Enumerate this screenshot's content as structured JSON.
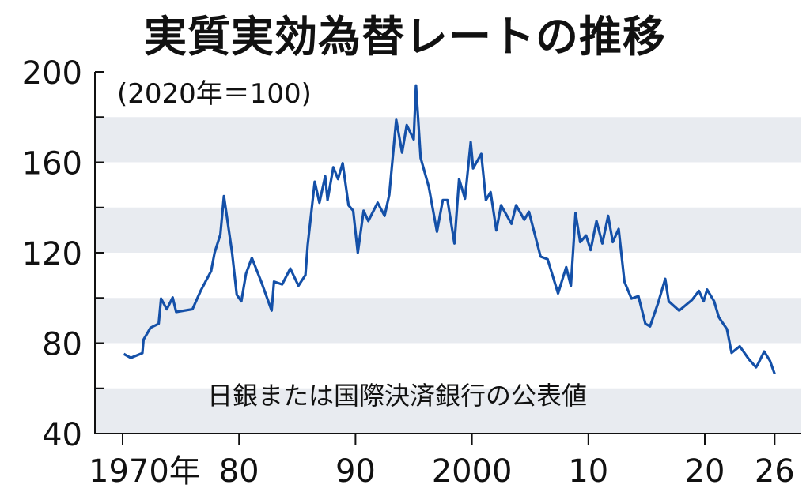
{
  "chart_data": {
    "type": "line",
    "title": "実質実効為替レートの推移",
    "unit_note": "(2020年＝100)",
    "source_note": "日銀または国際決済銀行の公表値",
    "ylim": [
      40,
      200
    ],
    "yticks": [
      "40",
      "80",
      "120",
      "160",
      "200"
    ],
    "ytick_values": [
      40,
      80,
      120,
      160,
      200
    ],
    "xlim": [
      1970,
      2026
    ],
    "xticks": [
      {
        "value": 1970,
        "label": "1970年"
      },
      {
        "value": 1980,
        "label": "80"
      },
      {
        "value": 1990,
        "label": "90"
      },
      {
        "value": 2000,
        "label": "2000"
      },
      {
        "value": 2010,
        "label": "10"
      },
      {
        "value": 2020,
        "label": "20"
      },
      {
        "value": 2026,
        "label": "26"
      }
    ],
    "bands": [
      [
        40,
        60
      ],
      [
        80,
        100
      ],
      [
        120,
        140
      ],
      [
        160,
        180
      ]
    ],
    "grid": false,
    "colors": {
      "line": "#1450a8",
      "band": "#e8ebf0"
    },
    "series": [
      {
        "x": [
          1970.1,
          1970.7,
          1971.7,
          1971.8,
          1972.4,
          1973.1,
          1973.3,
          1973.8,
          1974.3,
          1974.6,
          1976.0,
          1976.7,
          1977.6,
          1977.9,
          1978.4,
          1978.7,
          1979.4,
          1979.8,
          1980.2,
          1980.6,
          1981.1,
          1981.9,
          1982.8,
          1983.0,
          1983.7,
          1984.4,
          1985.1,
          1985.7,
          1985.9,
          1986.5,
          1986.9,
          1987.4,
          1987.6,
          1988.1,
          1988.5,
          1988.9,
          1989.4,
          1989.8,
          1990.2,
          1990.7,
          1991.1,
          1991.9,
          1992.5,
          1992.9,
          1993.5,
          1994.0,
          1994.4,
          1995.0,
          1995.2,
          1995.6,
          1996.3,
          1997.0,
          1997.5,
          1997.9,
          1998.5,
          1998.9,
          1999.4,
          1999.9,
          2000.1,
          2000.8,
          2001.2,
          2001.6,
          2002.1,
          2002.5,
          2003.4,
          2003.8,
          2004.5,
          2004.9,
          2005.9,
          2006.5,
          2007.4,
          2008.1,
          2008.5,
          2008.9,
          2009.3,
          2009.8,
          2010.2,
          2010.7,
          2011.2,
          2011.7,
          2012.1,
          2012.6,
          2013.1,
          2013.7,
          2014.3,
          2014.9,
          2015.3,
          2016.0,
          2016.6,
          2016.9,
          2017.8,
          2018.9,
          2019.5,
          2019.9,
          2020.2,
          2020.8,
          2021.2,
          2021.9,
          2022.3,
          2023.0,
          2023.8,
          2024.4,
          2024.6,
          2025.1,
          2025.6,
          2026.0
        ],
        "y": [
          75.2,
          73.5,
          75.6,
          81.6,
          86.8,
          88.6,
          99.7,
          95,
          100.2,
          93.8,
          95,
          103.1,
          111.9,
          120,
          128.1,
          145,
          120,
          101.4,
          98.5,
          110.7,
          117.7,
          107.2,
          94.4,
          107.2,
          106,
          113,
          105.4,
          110.1,
          123.5,
          151.4,
          142.1,
          153.8,
          143.3,
          157.8,
          152.6,
          159.6,
          141,
          138.6,
          120,
          138.6,
          134,
          142.1,
          136.3,
          145.6,
          178.8,
          164.3,
          176.5,
          170.1,
          194,
          161.9,
          149.1,
          129.3,
          143.3,
          143.3,
          124.1,
          152.6,
          143.9,
          168.9,
          157.3,
          163.7,
          143.3,
          146.8,
          129.9,
          141,
          132.8,
          141,
          134.6,
          138.1,
          118.3,
          117.1,
          102,
          113.6,
          105.4,
          137.5,
          124.7,
          127.6,
          121.2,
          134,
          124.1,
          136.3,
          124.7,
          130.5,
          107.2,
          99.7,
          100.8,
          88.6,
          87.4,
          97.9,
          108.4,
          98.5,
          94.4,
          99.1,
          103.1,
          98.5,
          103.7,
          98.5,
          91.5,
          86.2,
          75.7,
          78.6,
          72.8,
          69.3,
          71.1,
          76.3,
          72.2,
          66.4
        ]
      }
    ]
  }
}
